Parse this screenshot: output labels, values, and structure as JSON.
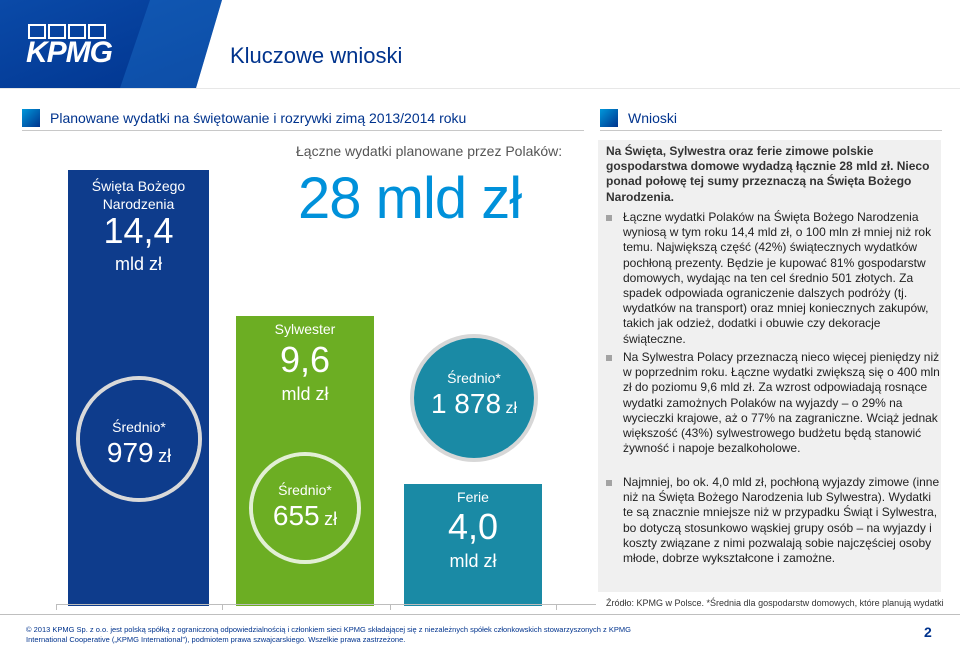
{
  "header": {
    "logo_text": "KPMG",
    "title": "Kluczowe wnioski"
  },
  "left_section": {
    "heading": "Planowane wydatki na świętowanie i rozrywki zimą 2013/2014 roku",
    "subtitle": "Łączne wydatki planowane przez Polaków:",
    "total": "28 mld zł"
  },
  "bars": {
    "christmas": {
      "label_line1": "Święta Bożego",
      "label_line2": "Narodzenia",
      "value": "14,4",
      "unit": "mld zł",
      "avg_label": "Średnio*",
      "avg_value": "979",
      "avg_unit": "zł"
    },
    "new_year": {
      "label": "Sylwester",
      "value": "9,6",
      "unit": "mld zł",
      "avg_label": "Średnio*",
      "avg_value": "655",
      "avg_unit": "zł"
    },
    "winter_holidays": {
      "label": "Ferie",
      "value": "4,0",
      "unit": "mld zł",
      "avg_label": "Średnio*",
      "avg_value": "1 878",
      "avg_unit": "zł"
    }
  },
  "chart_data": {
    "type": "bar",
    "categories": [
      "Święta Bożego Narodzenia",
      "Sylwester",
      "Ferie"
    ],
    "values": [
      14.4,
      9.6,
      4.0
    ],
    "averages": [
      979,
      655,
      1878
    ],
    "colors": [
      "#0e3c8c",
      "#6cae23",
      "#1a8aa5"
    ]
  },
  "right_section": {
    "heading": "Wnioski",
    "intro": "Na Święta, Sylwestra oraz ferie zimowe polskie gospodarstwa domowe wydadzą łącznie 28 mld zł. Nieco ponad połowę tej sumy przeznaczą na Święta Bożego Narodzenia.",
    "bullets": [
      "Łączne wydatki Polaków na Święta Bożego Narodzenia wyniosą w tym roku 14,4 mld zł, o 100 mln zł mniej niż rok temu. Największą część (42%) świątecznych wydatków pochłoną prezenty. Będzie je kupować 81% gospodarstw domowych, wydając na ten cel średnio 501 złotych. Za spadek odpowiada ograniczenie dalszych podróży (tj. wydatków na transport) oraz mniej koniecznych zakupów, takich jak odzież, dodatki i obuwie czy dekoracje świąteczne.",
      "Na Sylwestra Polacy przeznaczą nieco więcej pieniędzy niż w poprzednim roku. Łączne wydatki zwiększą się o 400 mln zł do poziomu 9,6 mld zł. Za wzrost odpowiadają rosnące wydatki zamożnych Polaków na wyjazdy – o 29% na wycieczki krajowe, aż o 77% na zagraniczne. Wciąż jednak większość (43%) sylwestrowego budżetu będą stanowić żywność i napoje bezalkoholowe.",
      "Najmniej, bo ok. 4,0 mld zł, pochłoną wyjazdy zimowe (inne niż na Święta Bożego Narodzenia lub Sylwestra). Wydatki te są znacznie mniejsze niż w przypadku Świąt i Sylwestra, bo dotyczą stosunkowo wąskiej grupy osób – na wyjazdy i koszty związane z nimi pozwalają sobie najczęściej osoby młode, dobrze wykształcone i zamożne."
    ],
    "source": "Źródło: KPMG w Polsce. *Średnia dla gospodarstw domowych, które planują wydatki"
  },
  "footer": {
    "copyright": "© 2013 KPMG Sp. z o.o. jest polską spółką z ograniczoną odpowiedzialnością i członkiem sieci KPMG składającej się z niezależnych spółek członkowskich stowarzyszonych z KPMG International Cooperative („KPMG International”), podmiotem prawa szwajcarskiego. Wszelkie prawa zastrzeżone.",
    "page_number": "2"
  },
  "colors": {
    "kpmg_blue": "#00338d",
    "light_blue": "#0091da",
    "green": "#6cae23",
    "teal": "#1a8aa5"
  }
}
